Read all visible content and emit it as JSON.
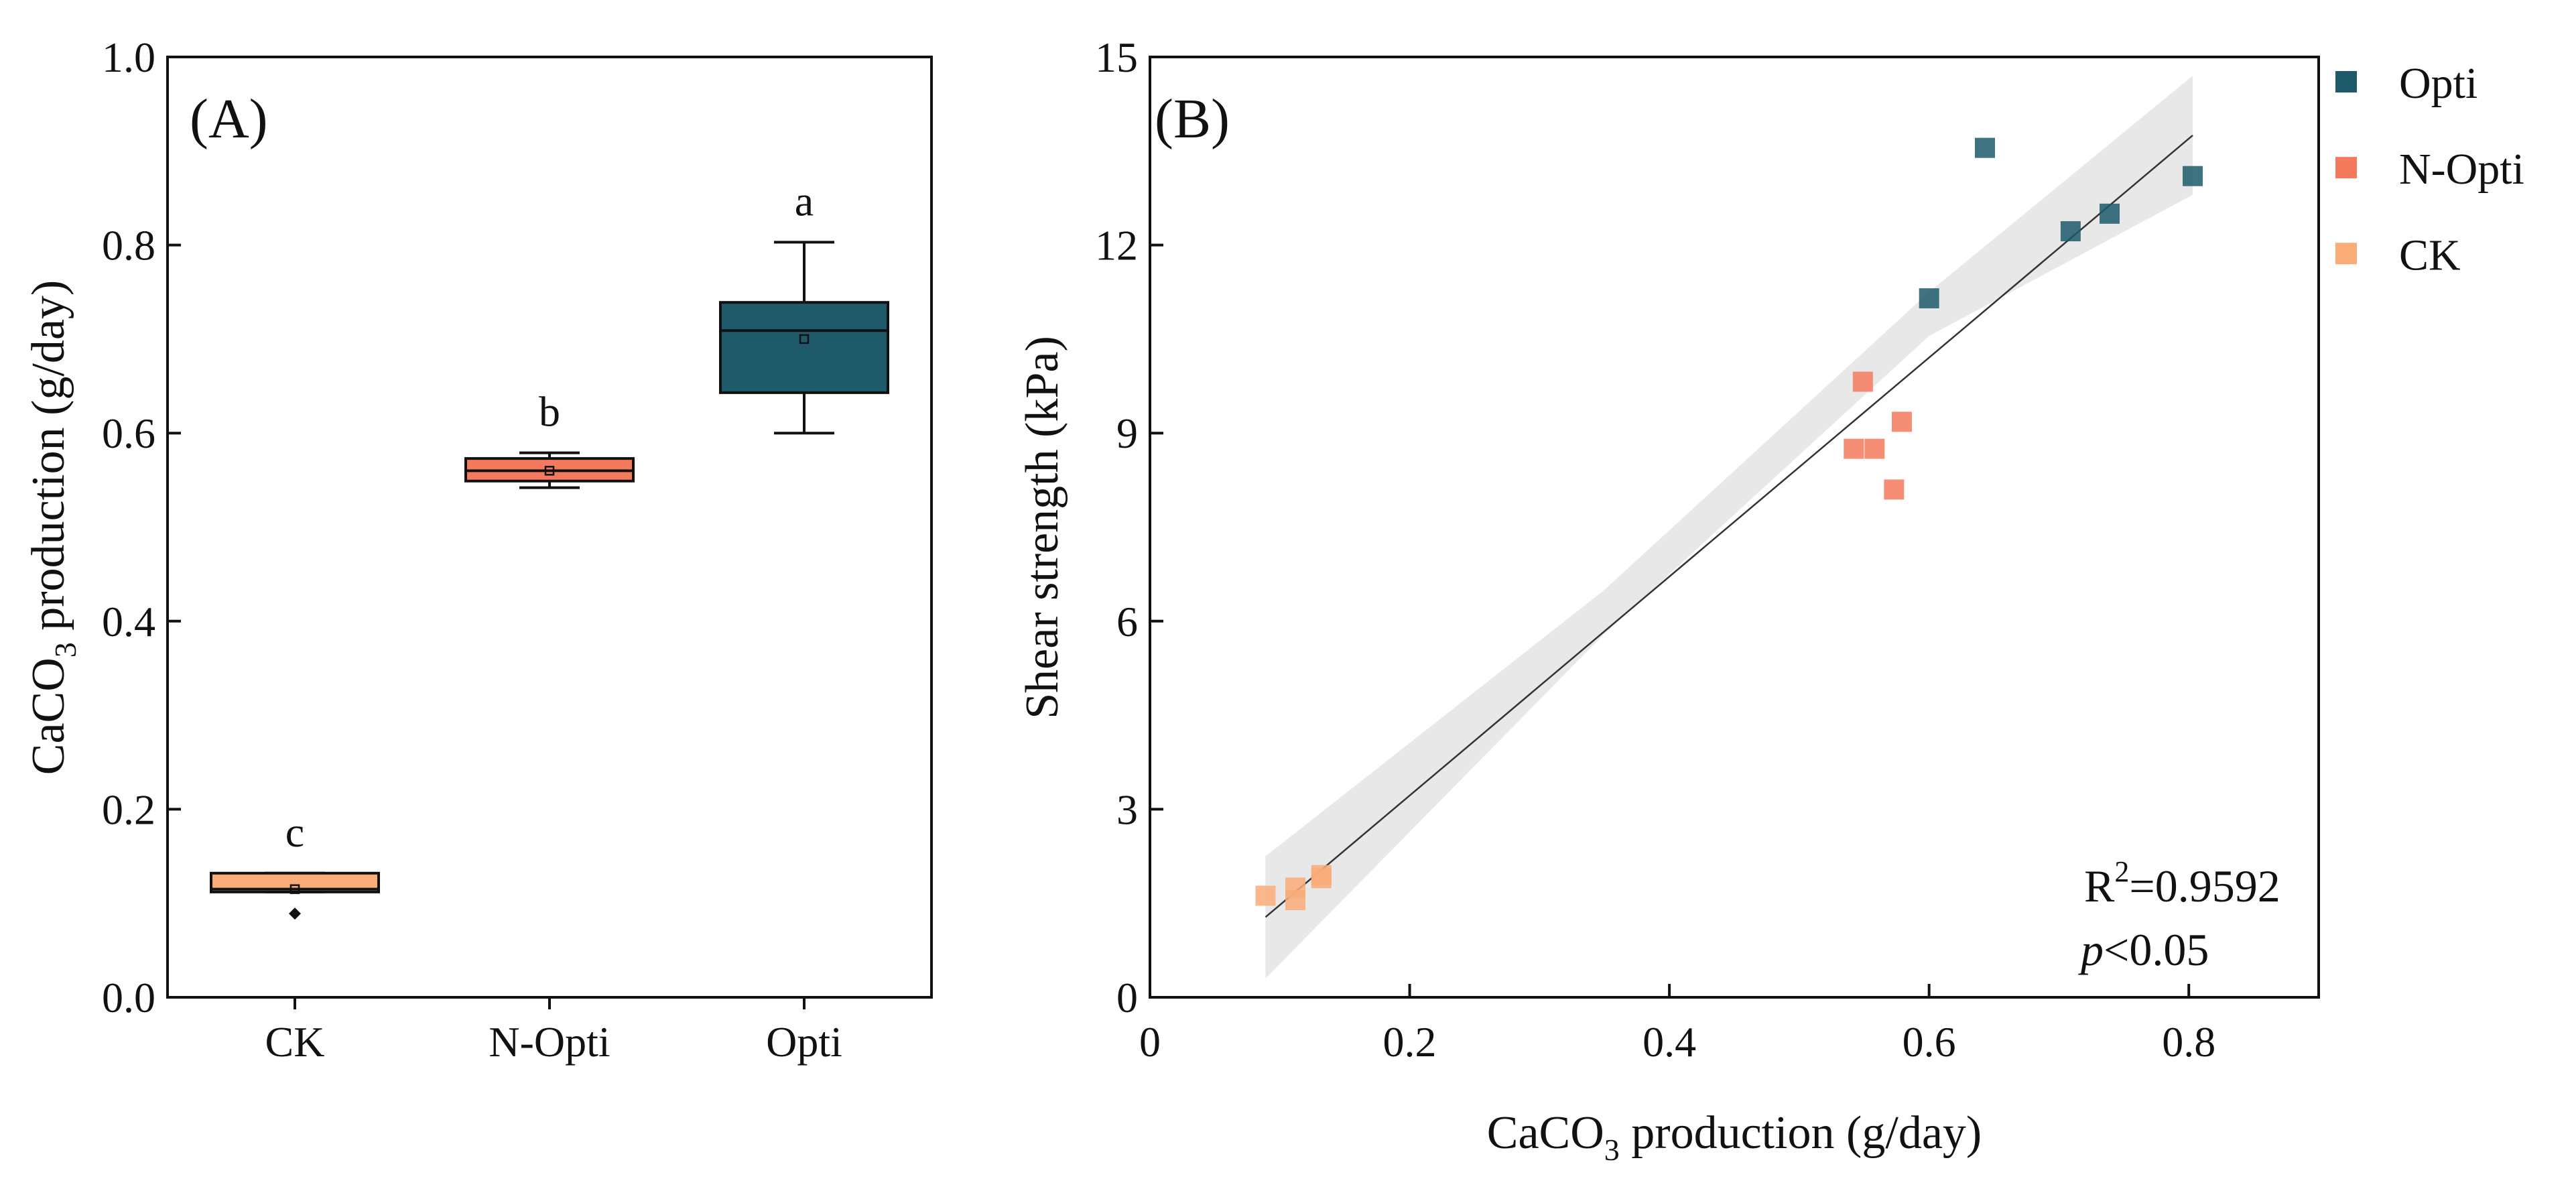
{
  "chart_data": [
    {
      "type": "box",
      "panel_label": "(A)",
      "ylabel": "CaCO",
      "ylabel_sub": "3",
      "ylabel_tail": " production (g/day)",
      "ylim": [
        0.0,
        1.0
      ],
      "yticks": [
        "0.0",
        "0.2",
        "0.4",
        "0.6",
        "0.8",
        "1.0"
      ],
      "categories": [
        "CK",
        "N-Opti",
        "Opti"
      ],
      "boxes": [
        {
          "category": "CK",
          "min": 0.112,
          "q1": 0.112,
          "median": 0.115,
          "q3": 0.132,
          "max": 0.132,
          "mean": 0.115,
          "outliers": [
            0.089
          ],
          "letter": "c",
          "color": "#F9AB78"
        },
        {
          "category": "N-Opti",
          "min": 0.542,
          "q1": 0.549,
          "median": 0.56,
          "q3": 0.573,
          "max": 0.579,
          "mean": 0.56,
          "outliers": [],
          "letter": "b",
          "color": "#F47A5E"
        },
        {
          "category": "Opti",
          "min": 0.6,
          "q1": 0.643,
          "median": 0.709,
          "q3": 0.739,
          "max": 0.803,
          "mean": 0.7,
          "outliers": [],
          "letter": "a",
          "color": "#1F5A6B"
        }
      ]
    },
    {
      "type": "scatter",
      "panel_label": "(B)",
      "xlabel": "CaCO",
      "xlabel_sub": "3",
      "xlabel_tail": " production (g/day)",
      "ylabel": "Shear strength (kPa)",
      "xlim": [
        0,
        0.9
      ],
      "ylim": [
        0,
        15
      ],
      "xticks": [
        "0",
        "0.2",
        "0.4",
        "0.6",
        "0.8"
      ],
      "xtick_values": [
        0,
        0.2,
        0.4,
        0.6,
        0.8
      ],
      "yticks": [
        "0",
        "3",
        "6",
        "9",
        "12",
        "15"
      ],
      "ytick_values": [
        0,
        3,
        6,
        9,
        12,
        15
      ],
      "legend_position": "top-right",
      "series": [
        {
          "name": "Opti",
          "color": "#1F5A6B",
          "points": [
            [
              0.643,
              13.55
            ],
            [
              0.6,
              11.15
            ],
            [
              0.709,
              12.22
            ],
            [
              0.739,
              12.5
            ],
            [
              0.803,
              13.1
            ]
          ]
        },
        {
          "name": "N-Opti",
          "color": "#F47A5E",
          "points": [
            [
              0.549,
              9.82
            ],
            [
              0.542,
              8.75
            ],
            [
              0.558,
              8.75
            ],
            [
              0.579,
              9.18
            ],
            [
              0.573,
              8.1
            ]
          ]
        },
        {
          "name": "CK",
          "color": "#F9AB78",
          "points": [
            [
              0.089,
              1.62
            ],
            [
              0.112,
              1.75
            ],
            [
              0.112,
              1.55
            ],
            [
              0.132,
              1.9
            ],
            [
              0.132,
              1.95
            ]
          ]
        }
      ],
      "fit": {
        "x": [
          0.089,
          0.803
        ],
        "y": [
          1.28,
          13.75
        ]
      },
      "band": {
        "x": [
          0.089,
          0.35,
          0.6,
          0.803
        ],
        "lower": [
          0.3,
          5.8,
          10.55,
          12.8
        ],
        "upper": [
          2.25,
          6.5,
          11.25,
          14.7
        ]
      },
      "annotation": {
        "r2_prefix": "R",
        "r2_sup": "2",
        "r2_suffix": "=0.9592",
        "p_italic": "p",
        "p_suffix": "<0.05"
      }
    }
  ]
}
